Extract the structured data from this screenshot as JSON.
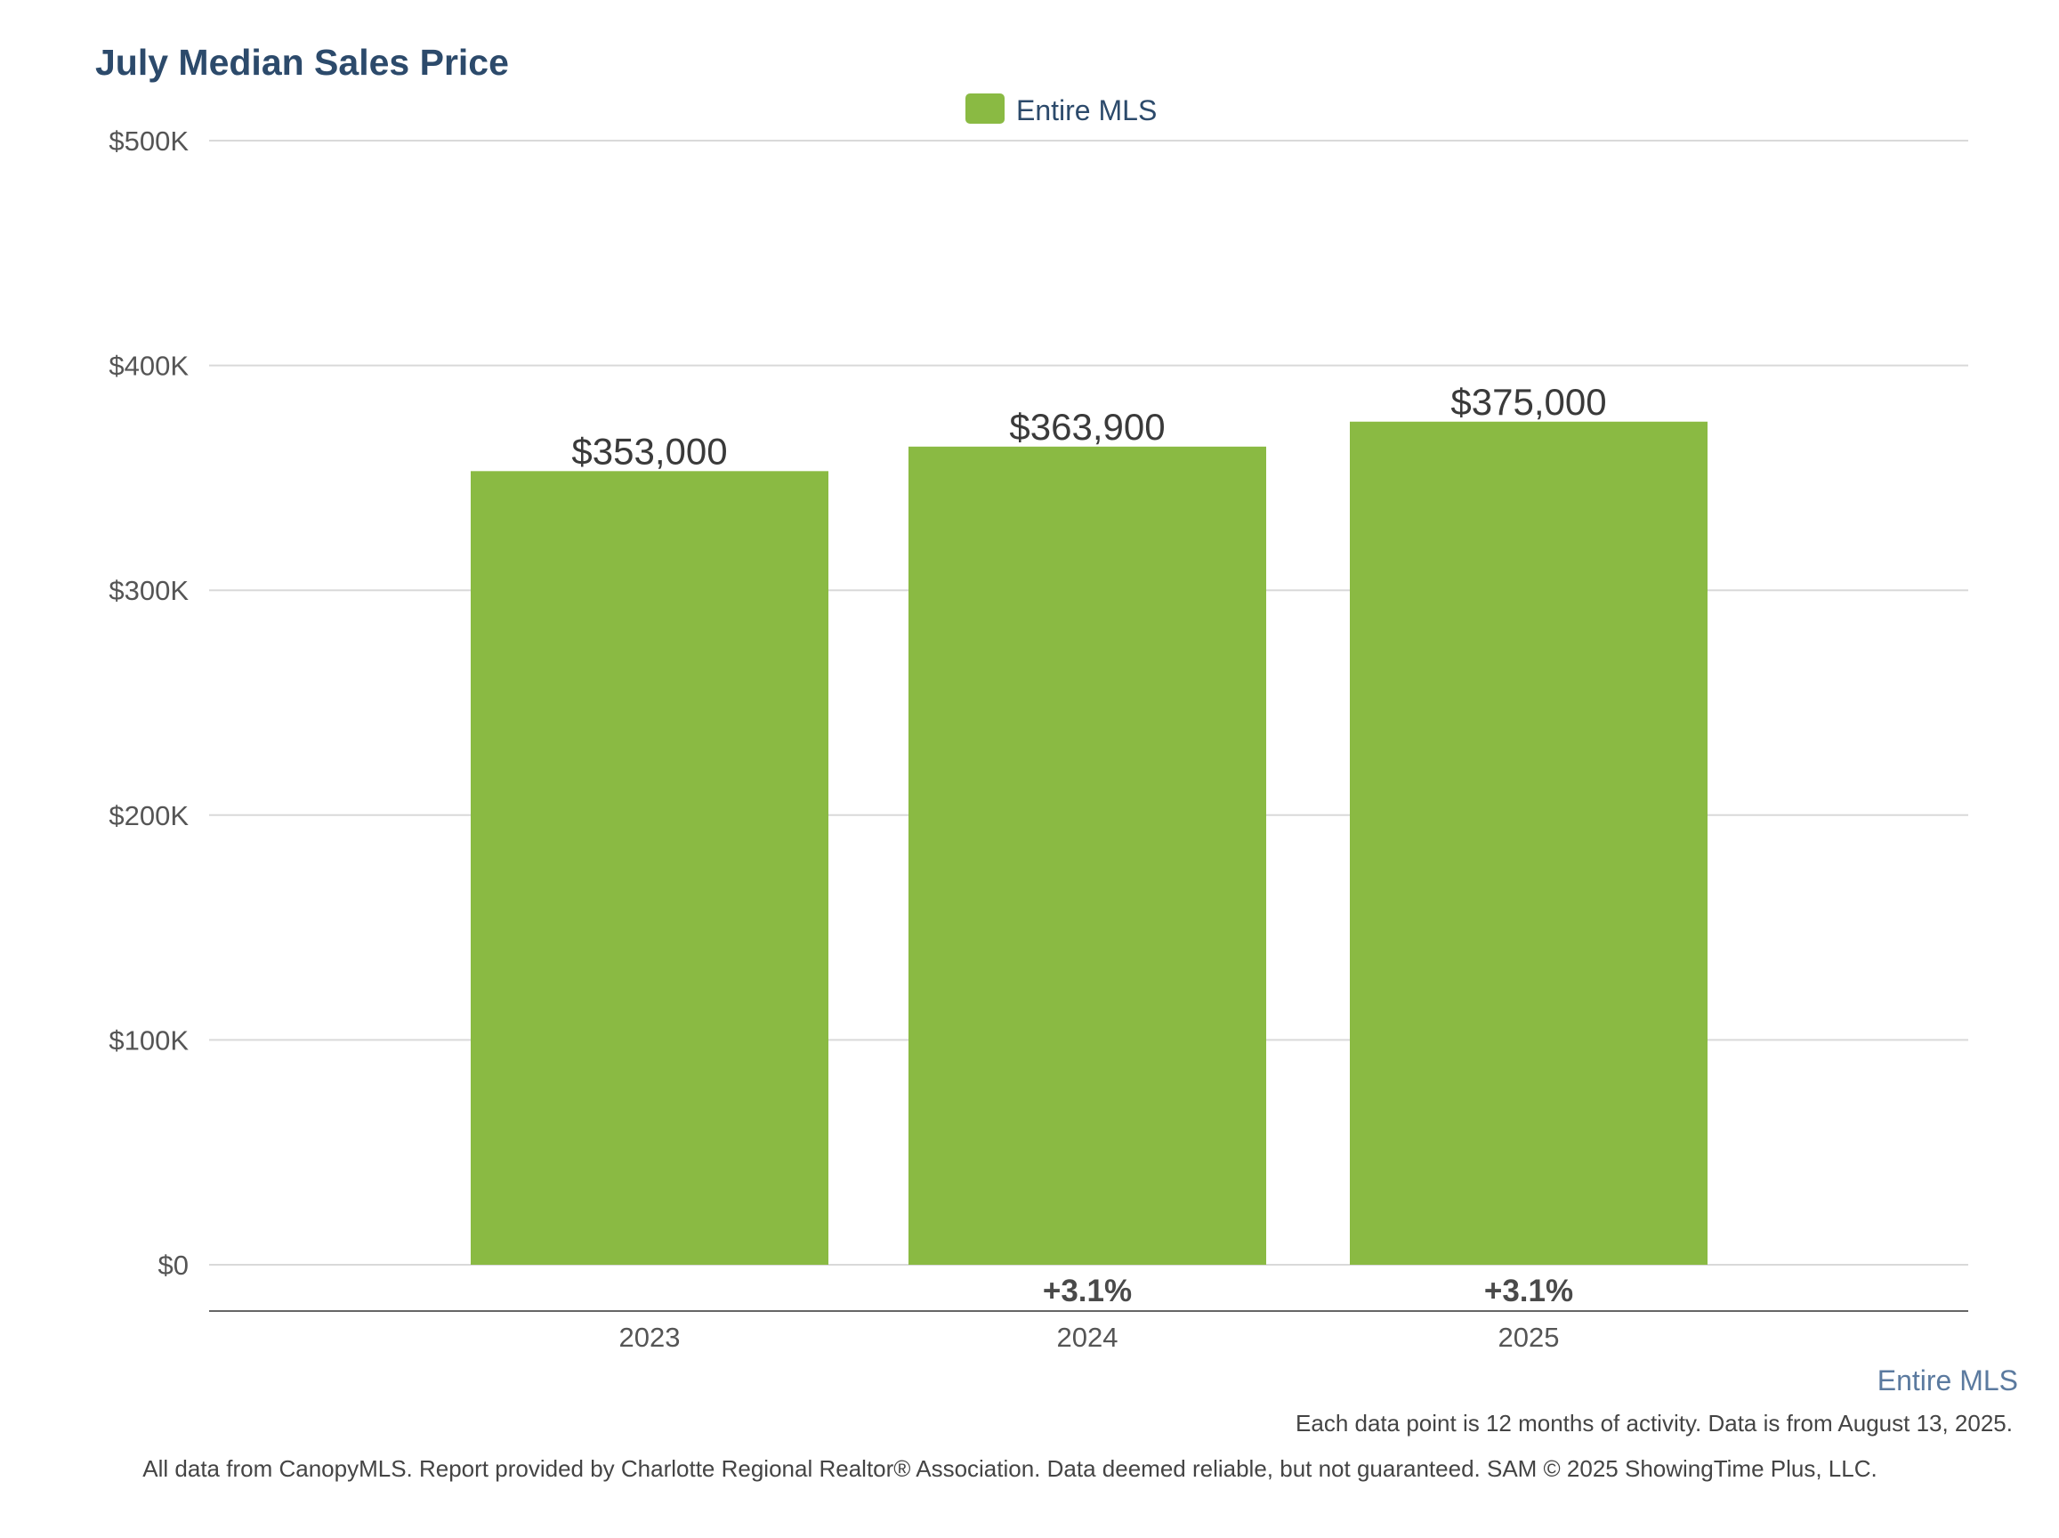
{
  "colors": {
    "bar": "#8aba43",
    "title": "#2c4a6b",
    "legend_text": "#2c4a6b",
    "axis_text": "#555555",
    "value_label": "#3a3a3a",
    "change_label": "#4a4a4a",
    "grid": "#d9d9d9",
    "baseline": "#666666",
    "series_caption": "#5b7a9f",
    "footnote": "#444444"
  },
  "legend": {
    "label": "Entire MLS"
  },
  "footer": {
    "series_caption": "Entire MLS",
    "note": "Each data point is 12 months of activity. Data is from August 13, 2025.",
    "disclaimer": "All data from CanopyMLS. Report provided by Charlotte Regional Realtor® Association. Data deemed reliable, but not guaranteed. SAM © 2025 ShowingTime Plus, LLC."
  },
  "chart_data": {
    "type": "bar",
    "title": "July Median Sales Price",
    "categories": [
      "2023",
      "2024",
      "2025"
    ],
    "series": [
      {
        "name": "Entire MLS",
        "values": [
          353000,
          363900,
          375000
        ]
      }
    ],
    "value_labels": [
      "$353,000",
      "$363,900",
      "$375,000"
    ],
    "change_labels": [
      "",
      "+3.1%",
      "+3.1%"
    ],
    "ylim": [
      0,
      500000
    ],
    "yticks": [
      0,
      100000,
      200000,
      300000,
      400000,
      500000
    ],
    "ytick_labels": [
      "$0",
      "$100K",
      "$200K",
      "$300K",
      "$400K",
      "$500K"
    ],
    "xlabel": "",
    "ylabel": "",
    "grid": true,
    "legend_position": "top-center"
  }
}
